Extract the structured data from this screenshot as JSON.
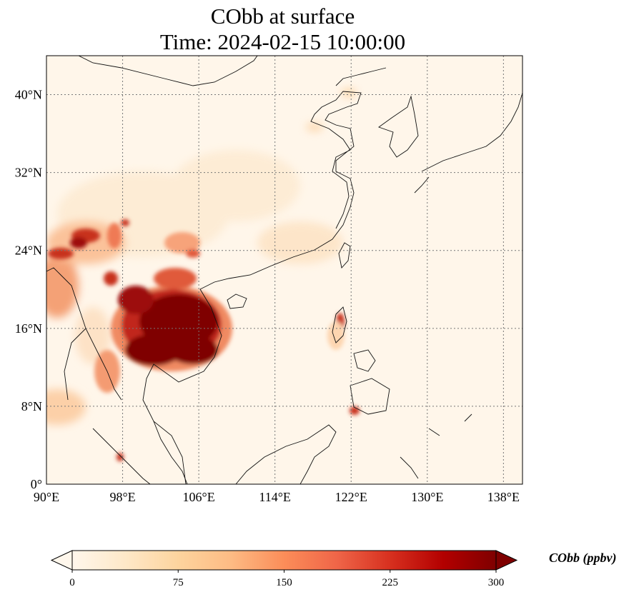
{
  "title": {
    "line1": "CObb at surface",
    "line2": "Time: 2024-02-15 10:00:00"
  },
  "map": {
    "projection": "PlateCarree",
    "lon_range": [
      90,
      140
    ],
    "lat_range": [
      0,
      44
    ],
    "gridlines": "dotted",
    "colormap": "OrRd",
    "lon_ticks": [
      {
        "value": 90,
        "label": "90°E"
      },
      {
        "value": 98,
        "label": "98°E"
      },
      {
        "value": 106,
        "label": "106°E"
      },
      {
        "value": 114,
        "label": "114°E"
      },
      {
        "value": 122,
        "label": "122°E"
      },
      {
        "value": 130,
        "label": "130°E"
      },
      {
        "value": 138,
        "label": "138°E"
      }
    ],
    "lat_ticks": [
      {
        "value": 0,
        "label": "0°"
      },
      {
        "value": 8,
        "label": "8°N"
      },
      {
        "value": 16,
        "label": "16°N"
      },
      {
        "value": 24,
        "label": "24°N"
      },
      {
        "value": 32,
        "label": "32°N"
      },
      {
        "value": 40,
        "label": "40°N"
      }
    ]
  },
  "colorbar": {
    "label": "CObb (ppbv)",
    "min": 0,
    "max": 300,
    "extend": "both",
    "ticks": [
      {
        "value": 0,
        "label": "0"
      },
      {
        "value": 75,
        "label": "75"
      },
      {
        "value": 150,
        "label": "150"
      },
      {
        "value": 225,
        "label": "225"
      },
      {
        "value": 300,
        "label": "300"
      }
    ],
    "colors": [
      "#fff7ec",
      "#fee8c8",
      "#fdd49e",
      "#fdbb84",
      "#fc8d59",
      "#ef6548",
      "#d7301f",
      "#b30000",
      "#7f0000"
    ]
  }
}
